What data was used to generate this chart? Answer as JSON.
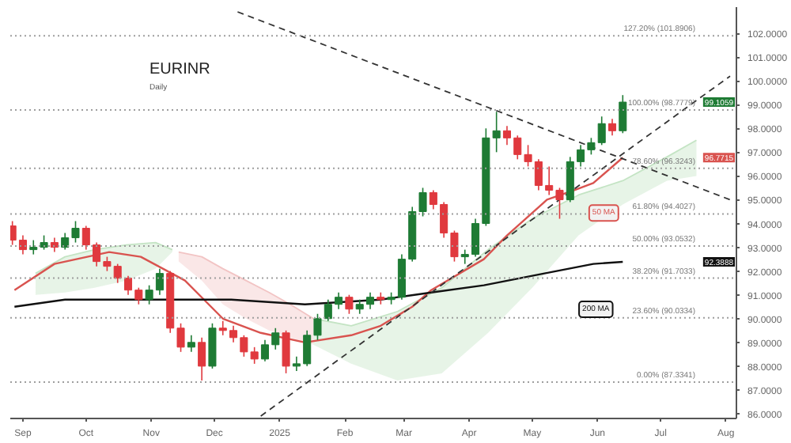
{
  "chart_data": {
    "type": "candlestick",
    "title": "EURINR",
    "subtitle": "Daily",
    "xlim": [
      "2024-08-26",
      "2025-08-06"
    ],
    "ylim": [
      85.8,
      103.1
    ],
    "xticks": [
      {
        "value": "2024-09-01",
        "label": "Sep"
      },
      {
        "value": "2024-10-01",
        "label": "Oct"
      },
      {
        "value": "2024-11-01",
        "label": "Nov"
      },
      {
        "value": "2024-12-01",
        "label": "Dec"
      },
      {
        "value": "2025-01-01",
        "label": "2025"
      },
      {
        "value": "2025-02-01",
        "label": "Feb"
      },
      {
        "value": "2025-03-01",
        "label": "Mar"
      },
      {
        "value": "2025-04-01",
        "label": "Apr"
      },
      {
        "value": "2025-05-01",
        "label": "May"
      },
      {
        "value": "2025-06-01",
        "label": "Jun"
      },
      {
        "value": "2025-07-01",
        "label": "Jul"
      },
      {
        "value": "2025-08-01",
        "label": "Aug"
      }
    ],
    "yticks": [
      {
        "value": 86,
        "label": "86.0000"
      },
      {
        "value": 87,
        "label": "87.0000"
      },
      {
        "value": 88,
        "label": "88.0000"
      },
      {
        "value": 89,
        "label": "89.0000"
      },
      {
        "value": 90,
        "label": "90.0000"
      },
      {
        "value": 91,
        "label": "91.0000"
      },
      {
        "value": 92,
        "label": "92.0000"
      },
      {
        "value": 93,
        "label": "93.0000"
      },
      {
        "value": 94,
        "label": "94.0000"
      },
      {
        "value": 95,
        "label": "95.0000"
      },
      {
        "value": 96,
        "label": "96.0000"
      },
      {
        "value": 97,
        "label": "97.0000"
      },
      {
        "value": 98,
        "label": "98.0000"
      },
      {
        "value": 99,
        "label": "99.0000"
      },
      {
        "value": 100,
        "label": "100.0000"
      },
      {
        "value": 101,
        "label": "101.0000"
      },
      {
        "value": 102,
        "label": "102.0000"
      }
    ],
    "grid": false,
    "legend": false,
    "series": [
      {
        "type": "candlestick",
        "x": [
          "2024-08-27",
          "2024-09-01",
          "2024-09-06",
          "2024-09-11",
          "2024-09-16",
          "2024-09-21",
          "2024-09-26",
          "2024-10-01",
          "2024-10-06",
          "2024-10-11",
          "2024-10-16",
          "2024-10-21",
          "2024-10-26",
          "2024-10-31",
          "2024-11-05",
          "2024-11-10",
          "2024-11-15",
          "2024-11-20",
          "2024-11-25",
          "2024-11-30",
          "2024-12-05",
          "2024-12-10",
          "2024-12-15",
          "2024-12-20",
          "2024-12-25",
          "2024-12-30",
          "2025-01-04",
          "2025-01-09",
          "2025-01-14",
          "2025-01-19",
          "2025-01-24",
          "2025-01-29",
          "2025-02-03",
          "2025-02-08",
          "2025-02-13",
          "2025-02-18",
          "2025-02-23",
          "2025-02-28",
          "2025-03-05",
          "2025-03-10",
          "2025-03-15",
          "2025-03-20",
          "2025-03-25",
          "2025-03-30",
          "2025-04-04",
          "2025-04-09",
          "2025-04-14",
          "2025-04-19",
          "2025-04-24",
          "2025-04-29",
          "2025-05-04",
          "2025-05-09",
          "2025-05-14",
          "2025-05-19",
          "2025-05-24",
          "2025-05-29",
          "2025-06-03",
          "2025-06-08",
          "2025-06-13"
        ],
        "ohlc": [
          [
            93.9,
            94.1,
            93.1,
            93.3
          ],
          [
            93.3,
            93.5,
            92.7,
            92.9
          ],
          [
            92.9,
            93.3,
            92.7,
            93.0
          ],
          [
            93.0,
            93.5,
            92.9,
            93.2
          ],
          [
            93.2,
            93.4,
            92.8,
            93.0
          ],
          [
            93.0,
            93.6,
            92.9,
            93.4
          ],
          [
            93.4,
            94.1,
            93.2,
            93.8
          ],
          [
            93.8,
            93.9,
            92.9,
            93.1
          ],
          [
            93.1,
            93.2,
            92.2,
            92.4
          ],
          [
            92.4,
            92.6,
            92.0,
            92.2
          ],
          [
            92.2,
            92.3,
            91.5,
            91.7
          ],
          [
            91.7,
            91.8,
            91.0,
            91.2
          ],
          [
            91.2,
            91.3,
            90.6,
            90.8
          ],
          [
            90.8,
            91.4,
            90.6,
            91.2
          ],
          [
            91.2,
            92.1,
            91.0,
            91.9
          ],
          [
            91.9,
            92.0,
            89.4,
            89.6
          ],
          [
            89.6,
            89.8,
            88.6,
            88.8
          ],
          [
            88.8,
            89.3,
            88.6,
            89.0
          ],
          [
            89.0,
            89.2,
            87.4,
            88.0
          ],
          [
            88.0,
            89.8,
            87.9,
            89.6
          ],
          [
            89.6,
            89.9,
            89.3,
            89.5
          ],
          [
            89.5,
            89.7,
            89.0,
            89.2
          ],
          [
            89.2,
            89.3,
            88.4,
            88.6
          ],
          [
            88.6,
            88.8,
            88.1,
            88.3
          ],
          [
            88.3,
            89.1,
            88.2,
            88.9
          ],
          [
            88.9,
            89.6,
            88.7,
            89.4
          ],
          [
            89.4,
            89.5,
            87.7,
            88.0
          ],
          [
            88.0,
            88.4,
            87.8,
            88.1
          ],
          [
            88.1,
            89.5,
            88.0,
            89.3
          ],
          [
            89.3,
            90.2,
            89.1,
            90.0
          ],
          [
            90.0,
            90.8,
            89.9,
            90.6
          ],
          [
            90.6,
            91.1,
            90.4,
            90.9
          ],
          [
            90.9,
            91.0,
            90.2,
            90.4
          ],
          [
            90.4,
            90.8,
            90.2,
            90.6
          ],
          [
            90.6,
            91.1,
            90.4,
            90.9
          ],
          [
            90.9,
            91.1,
            90.6,
            90.8
          ],
          [
            90.8,
            91.1,
            90.6,
            90.9
          ],
          [
            90.9,
            92.7,
            90.8,
            92.5
          ],
          [
            92.5,
            94.7,
            92.4,
            94.5
          ],
          [
            94.5,
            95.5,
            94.3,
            95.3
          ],
          [
            95.3,
            95.4,
            94.6,
            94.8
          ],
          [
            94.8,
            94.9,
            93.4,
            93.6
          ],
          [
            93.6,
            93.7,
            92.4,
            92.6
          ],
          [
            92.6,
            92.9,
            92.3,
            92.7
          ],
          [
            92.7,
            94.2,
            92.6,
            94.0
          ],
          [
            94.0,
            98.0,
            93.9,
            97.6
          ],
          [
            97.6,
            98.7,
            97.0,
            97.9
          ],
          [
            97.9,
            98.1,
            97.3,
            97.6
          ],
          [
            97.6,
            97.7,
            96.7,
            96.9
          ],
          [
            96.9,
            97.3,
            96.4,
            96.6
          ],
          [
            96.6,
            96.7,
            95.4,
            95.6
          ],
          [
            95.6,
            96.4,
            95.2,
            95.4
          ],
          [
            95.4,
            95.5,
            94.2,
            95.0
          ],
          [
            95.0,
            96.8,
            94.9,
            96.6
          ],
          [
            96.6,
            97.3,
            96.4,
            97.1
          ],
          [
            97.1,
            97.6,
            96.9,
            97.4
          ],
          [
            97.4,
            98.5,
            97.3,
            98.2
          ],
          [
            98.2,
            98.4,
            97.7,
            97.9
          ],
          [
            97.9,
            99.4,
            97.8,
            99.1059
          ]
        ],
        "colors": [
          "#e0393e",
          "#e0393e",
          "#1e7b34",
          "#1e7b34",
          "#e0393e",
          "#1e7b34",
          "#1e7b34",
          "#e0393e",
          "#e0393e",
          "#e0393e",
          "#e0393e",
          "#e0393e",
          "#e0393e",
          "#1e7b34",
          "#1e7b34",
          "#e0393e",
          "#e0393e",
          "#1e7b34",
          "#e0393e",
          "#1e7b34",
          "#e0393e",
          "#e0393e",
          "#e0393e",
          "#e0393e",
          "#1e7b34",
          "#1e7b34",
          "#e0393e",
          "#1e7b34",
          "#1e7b34",
          "#1e7b34",
          "#1e7b34",
          "#1e7b34",
          "#e0393e",
          "#1e7b34",
          "#1e7b34",
          "#e0393e",
          "#1e7b34",
          "#1e7b34",
          "#1e7b34",
          "#1e7b34",
          "#e0393e",
          "#e0393e",
          "#e0393e",
          "#1e7b34",
          "#1e7b34",
          "#1e7b34",
          "#1e7b34",
          "#e0393e",
          "#e0393e",
          "#e0393e",
          "#e0393e",
          "#e0393e",
          "#e0393e",
          "#1e7b34",
          "#1e7b34",
          "#1e7b34",
          "#1e7b34",
          "#e0393e",
          "#1e7b34"
        ]
      },
      {
        "type": "line",
        "name": "50 MA",
        "color": "#d9534f",
        "x": [
          "2024-08-28",
          "2024-09-16",
          "2024-10-12",
          "2024-10-27",
          "2024-11-17",
          "2024-12-05",
          "2024-12-23",
          "2025-01-13",
          "2025-02-04",
          "2025-02-18",
          "2025-03-05",
          "2025-03-14",
          "2025-04-08",
          "2025-04-19",
          "2025-05-08",
          "2025-05-21",
          "2025-05-30",
          "2025-06-13"
        ],
        "values": [
          91.2,
          92.3,
          92.8,
          92.6,
          91.6,
          90.0,
          89.4,
          89.0,
          89.3,
          89.7,
          90.5,
          91.2,
          92.5,
          93.5,
          95.0,
          95.4,
          95.7,
          96.7715
        ]
      },
      {
        "type": "line",
        "name": "200 MA",
        "color": "#111111",
        "x": [
          "2024-08-28",
          "2024-09-21",
          "2024-11-03",
          "2024-12-09",
          "2025-01-13",
          "2025-02-18",
          "2025-03-14",
          "2025-04-08",
          "2025-05-01",
          "2025-05-30",
          "2025-06-13"
        ],
        "values": [
          90.5,
          90.8,
          90.8,
          90.8,
          90.6,
          90.8,
          91.1,
          91.4,
          91.8,
          92.3,
          92.3888
        ]
      },
      {
        "type": "line",
        "color": "#333333",
        "line_style": "dashed",
        "x": [
          "2024-12-12",
          "2025-08-03"
        ],
        "values": [
          102.9,
          95.0
        ]
      },
      {
        "type": "line",
        "color": "#333333",
        "line_style": "dashed",
        "x": [
          "2024-12-23",
          "2025-08-03"
        ],
        "values": [
          85.9,
          100.2
        ]
      },
      {
        "type": "line",
        "color": "#c4e4c4",
        "x": [
          "2024-09-07",
          "2024-09-21",
          "2024-10-05",
          "2024-10-20",
          "2024-11-03",
          "2024-11-11"
        ],
        "values": [
          91.9,
          92.6,
          92.9,
          93.1,
          93.2,
          92.9
        ],
        "lower": [
          91.0,
          91.1,
          91.3,
          91.6,
          92.1,
          92.8
        ],
        "upper": [
          91.9,
          92.6,
          92.9,
          93.1,
          93.2,
          92.9
        ]
      },
      {
        "type": "line",
        "color": "#f2c4c4",
        "x": [
          "2024-11-14",
          "2024-11-25",
          "2024-12-05",
          "2024-12-16",
          "2024-12-27",
          "2025-01-06",
          "2025-01-17"
        ],
        "values": [
          92.8,
          92.6,
          92.1,
          91.6,
          91.1,
          90.6,
          90.0
        ],
        "lower": [
          92.4,
          91.6,
          90.6,
          90.0,
          89.5,
          89.2,
          88.9
        ],
        "upper": [
          92.8,
          92.6,
          92.1,
          91.6,
          91.1,
          90.6,
          90.0
        ]
      },
      {
        "type": "line",
        "color": "#c4e4c4",
        "x": [
          "2025-01-17",
          "2025-02-04",
          "2025-02-26",
          "2025-03-19",
          "2025-04-10",
          "2025-05-01",
          "2025-05-23",
          "2025-06-13",
          "2025-07-04",
          "2025-07-18"
        ],
        "values": [
          90.0,
          89.7,
          90.3,
          91.3,
          92.9,
          94.2,
          95.2,
          95.8,
          96.8,
          97.5
        ],
        "lower": [
          88.9,
          88.1,
          87.4,
          87.7,
          89.4,
          91.3,
          93.5,
          94.8,
          95.8,
          96.0
        ],
        "upper": [
          90.0,
          89.7,
          90.3,
          91.3,
          92.9,
          94.2,
          95.2,
          95.8,
          96.8,
          97.5
        ]
      }
    ],
    "ref_lines": [
      {
        "axis": "y",
        "value": 101.8906,
        "label": "127.20% (101.8906)",
        "color": "#9e9e9e",
        "line_style": "dotted"
      },
      {
        "axis": "y",
        "value": 98.7779,
        "label": "100.00% (98.7779)",
        "color": "#9e9e9e",
        "line_style": "dotted"
      },
      {
        "axis": "y",
        "value": 96.3243,
        "label": "78.60% (96.3243)",
        "color": "#9e9e9e",
        "line_style": "dotted"
      },
      {
        "axis": "y",
        "value": 94.4027,
        "label": "61.80% (94.4027)",
        "color": "#9e9e9e",
        "line_style": "dotted"
      },
      {
        "axis": "y",
        "value": 93.0532,
        "label": "50.00% (93.0532)",
        "color": "#9e9e9e",
        "line_style": "dotted"
      },
      {
        "axis": "y",
        "value": 91.7033,
        "label": "38.20% (91.7033)",
        "color": "#9e9e9e",
        "line_style": "dotted"
      },
      {
        "axis": "y",
        "value": 90.0334,
        "label": "23.60% (90.0334)",
        "color": "#9e9e9e",
        "line_style": "dotted"
      },
      {
        "axis": "y",
        "value": 87.3341,
        "label": "0.00% (87.3341)",
        "color": "#9e9e9e",
        "line_style": "dotted"
      }
    ],
    "annotations": [
      "99.1059",
      "96.7715",
      "92.3888"
    ]
  }
}
